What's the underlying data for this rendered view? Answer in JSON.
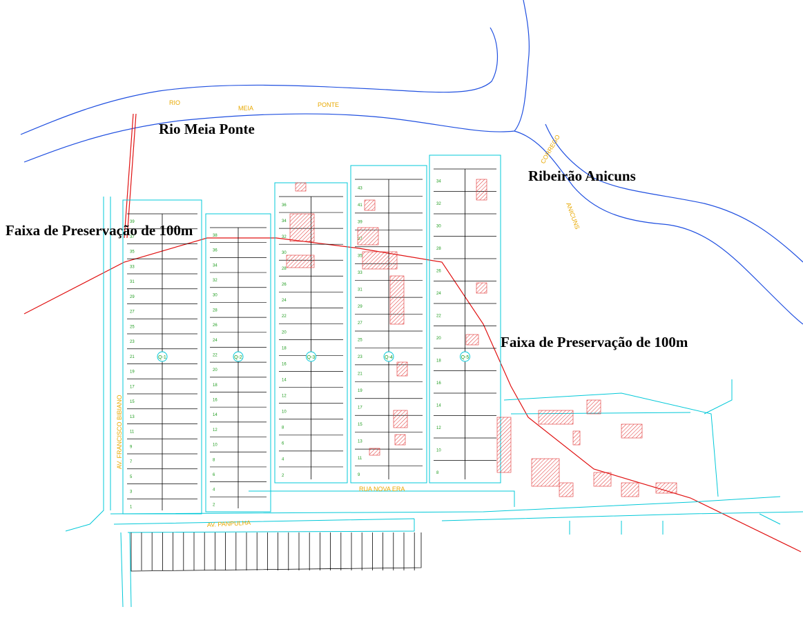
{
  "labels": {
    "river": "Rio Meia Ponte",
    "stream": "Ribeirão Anicuns",
    "band_left": "Faixa de Preservação de 100m",
    "band_right": "Faixa de Preservação de 100m"
  },
  "cad_labels": {
    "rio": "RIO",
    "meia": "MEIA",
    "ponte": "PONTE",
    "corrego": "CORREGO",
    "anicuns": "ANICUNS",
    "av_panpulha": "AV. PANPULHA",
    "av_bibiano": "AV. FRANCISCO BIBIANO",
    "rua_nova_era": "RUA NOVA ERA"
  },
  "blocks": [
    {
      "label": "Q-1",
      "lots": [
        39,
        37,
        35,
        33,
        31,
        29,
        27,
        25,
        23,
        21,
        19,
        17,
        15,
        13,
        11,
        9,
        7,
        5,
        3,
        1
      ]
    },
    {
      "label": "Q-2",
      "lots": [
        38,
        36,
        34,
        32,
        30,
        28,
        26,
        24,
        22,
        20,
        18,
        16,
        14,
        12,
        10,
        8,
        6,
        4,
        2
      ]
    },
    {
      "label": "Q-3",
      "lots": [
        36,
        34,
        32,
        30,
        28,
        26,
        24,
        22,
        20,
        18,
        16,
        14,
        12,
        10,
        8,
        6,
        4,
        2
      ]
    },
    {
      "label": "Q-4",
      "lots": [
        43,
        41,
        39,
        37,
        35,
        33,
        31,
        29,
        27,
        25,
        23,
        21,
        19,
        17,
        15,
        13,
        11,
        9
      ]
    },
    {
      "label": "Q-5",
      "lots": [
        34,
        32,
        30,
        28,
        26,
        24,
        22,
        20,
        18,
        16,
        14,
        12,
        10,
        8
      ]
    }
  ]
}
